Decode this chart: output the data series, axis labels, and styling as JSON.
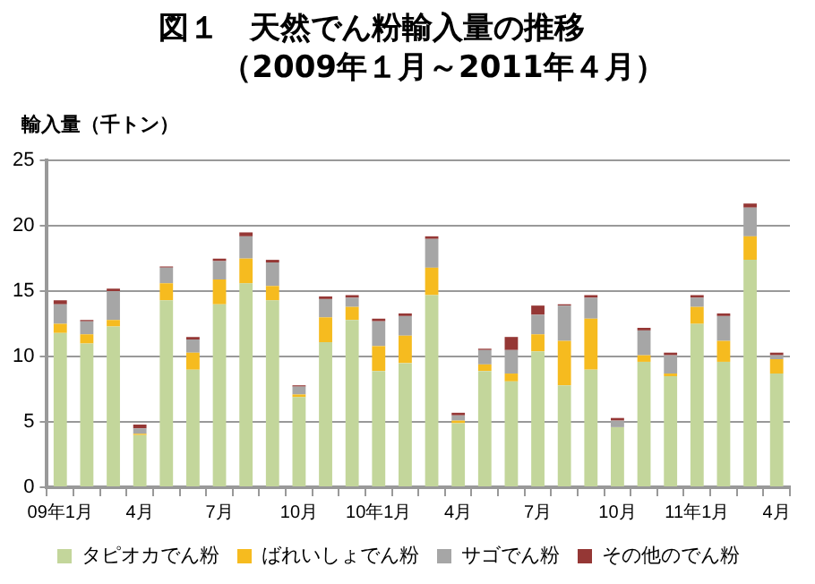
{
  "chart_data": {
    "type": "bar",
    "title": "図１　天然でん粉輸入量の推移",
    "subtitle": "（2009年１月～2011年４月）",
    "ylabel": "輸入量（千トン）",
    "categories": [
      "09年1月",
      null,
      null,
      "4月",
      null,
      null,
      "7月",
      null,
      null,
      "10月",
      null,
      null,
      "10年1月",
      null,
      null,
      "4月",
      null,
      null,
      "7月",
      null,
      null,
      "10月",
      null,
      null,
      "11年1月",
      null,
      null,
      "4月"
    ],
    "stacked": true,
    "ylim": [
      0,
      25
    ],
    "yticks": [
      0,
      5,
      10,
      15,
      20,
      25
    ],
    "grid": "y",
    "legend": "bottom",
    "series": [
      {
        "name": "タピオカでん粉",
        "color": "#c3d69b",
        "values": [
          11.8,
          11.0,
          12.3,
          4.0,
          14.3,
          9.0,
          14.0,
          15.6,
          14.3,
          6.9,
          11.1,
          12.8,
          8.9,
          9.5,
          14.7,
          4.9,
          8.9,
          8.1,
          10.4,
          7.8,
          9.0,
          4.6,
          9.6,
          8.5,
          12.5,
          9.6,
          17.4,
          8.7
        ]
      },
      {
        "name": "ばれいしょでん粉",
        "color": "#f6bb1f",
        "values": [
          0.7,
          0.7,
          0.5,
          0.1,
          1.3,
          1.3,
          1.9,
          1.9,
          1.1,
          0.2,
          1.9,
          1.0,
          1.9,
          2.1,
          2.1,
          0.2,
          0.5,
          0.6,
          1.3,
          3.4,
          3.9,
          0,
          0.5,
          0.2,
          1.3,
          1.6,
          1.8,
          1.1
        ]
      },
      {
        "name": "サゴでん粉",
        "color": "#a6a6a6",
        "values": [
          1.5,
          1.0,
          2.2,
          0.4,
          1.2,
          1.0,
          1.4,
          1.7,
          1.8,
          0.6,
          1.4,
          0.7,
          1.9,
          1.5,
          2.2,
          0.4,
          1.1,
          1.8,
          1.5,
          2.7,
          1.6,
          0.5,
          1.9,
          1.4,
          0.7,
          1.9,
          2.2,
          0.3
        ]
      },
      {
        "name": "その他のでん粉",
        "color": "#953735",
        "values": [
          0.3,
          0.1,
          0.2,
          0.3,
          0.1,
          0.2,
          0.2,
          0.3,
          0.2,
          0.1,
          0.2,
          0.2,
          0.2,
          0.2,
          0.2,
          0.2,
          0.1,
          1.0,
          0.7,
          0.1,
          0.2,
          0.2,
          0.2,
          0.2,
          0.2,
          0.2,
          0.3,
          0.2
        ]
      }
    ]
  }
}
